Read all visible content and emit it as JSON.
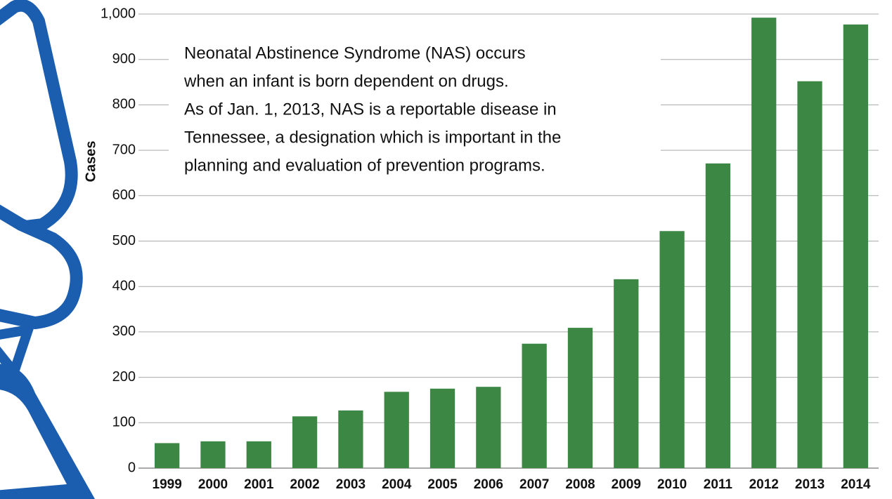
{
  "chart_data": {
    "type": "bar",
    "y_label": "Cases",
    "annotation": [
      "Neonatal Abstinence Syndrome (NAS) occurs",
      "when an infant is born dependent on drugs.",
      "As of Jan. 1, 2013, NAS is a reportable disease in",
      "Tennessee, a designation which is important in the",
      "planning and evaluation of prevention programs."
    ],
    "categories": [
      "1999",
      "2000",
      "2001",
      "2002",
      "2003",
      "2004",
      "2005",
      "2006",
      "2007",
      "2008",
      "2009",
      "2010",
      "2011",
      "2012",
      "2013",
      "2014"
    ],
    "values": [
      55,
      59,
      59,
      114,
      127,
      168,
      175,
      179,
      274,
      309,
      416,
      522,
      671,
      992,
      852,
      977
    ],
    "color": "#3b8743",
    "ylim": [
      0,
      1000
    ],
    "yticks": [
      0,
      100,
      200,
      300,
      400,
      500,
      600,
      700,
      800,
      900,
      {
        "value": 1000,
        "label": "1,000"
      }
    ],
    "grid": true
  }
}
